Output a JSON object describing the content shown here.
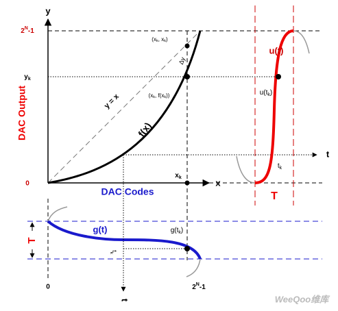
{
  "axes": {
    "y": "y",
    "x": "x",
    "origin": "0",
    "y_top": [
      "2",
      "N",
      "-1"
    ],
    "y_k": [
      "y",
      "k"
    ],
    "y_title": "DAC Output",
    "x_title": "DAC Codes"
  },
  "main": {
    "line_label": "y = x",
    "curve_label": "f(x)",
    "delta": "Δy",
    "point_xk_xk": [
      "(x",
      "k",
      ", x",
      "k",
      ")"
    ],
    "point_xk_fxk": [
      "(x",
      "k",
      ", f(x",
      "k",
      "))"
    ],
    "x_k": [
      "x",
      "k"
    ]
  },
  "right": {
    "t_axis": "t",
    "u_label": "u(t)",
    "u_tk": [
      "u(t",
      "k",
      ")"
    ],
    "t_k": [
      "t",
      "k"
    ],
    "period": "T"
  },
  "bottom": {
    "g_label": "g(t)",
    "g_tk": [
      "g(t",
      "k",
      ")"
    ],
    "t_k": [
      "t",
      "k"
    ],
    "period": "T",
    "t_axis": "t",
    "x_start": "0",
    "x_end": [
      "2",
      "N",
      "-1"
    ]
  },
  "watermark": "WeeQoo维库"
}
